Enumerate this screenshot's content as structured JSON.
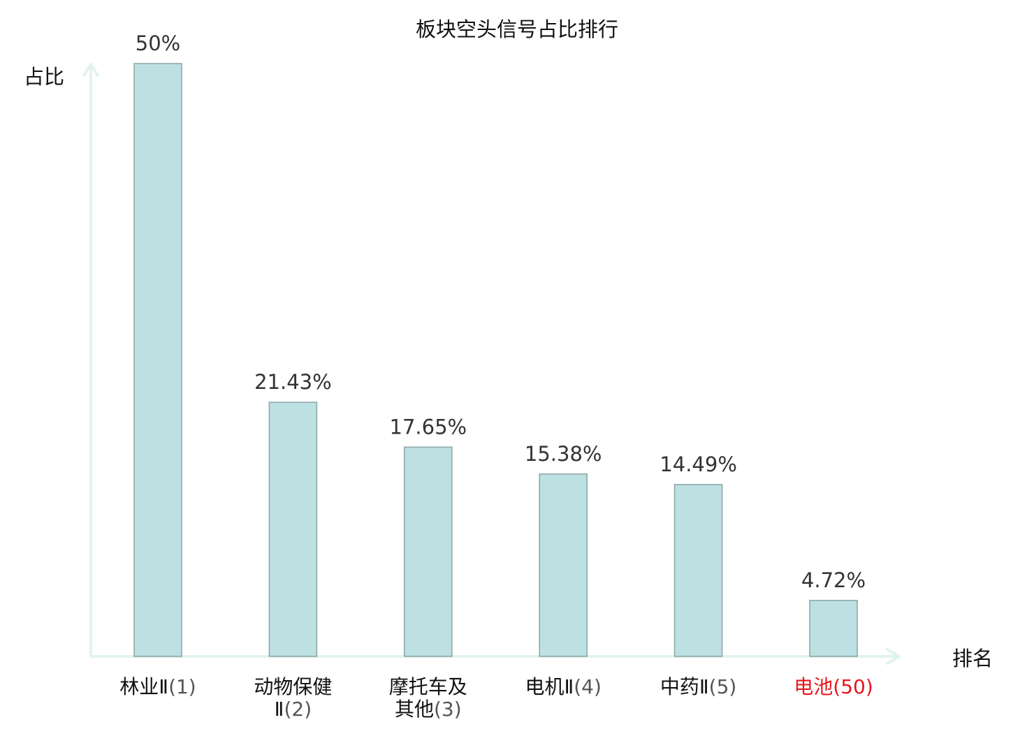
{
  "chart_data": {
    "type": "bar",
    "title": "板块空头信号占比排行",
    "xlabel": "排名",
    "ylabel": "占比",
    "ylim": [
      0,
      50
    ],
    "grid": false,
    "legend": "none",
    "categories": [
      {
        "name": "林业Ⅱ",
        "rank": "(1)",
        "highlight": false
      },
      {
        "name": "动物保健Ⅱ",
        "rank": "(2)",
        "highlight": false
      },
      {
        "name": "摩托车及其他",
        "rank": "(3)",
        "highlight": false
      },
      {
        "name": "电机Ⅱ",
        "rank": "(4)",
        "highlight": false
      },
      {
        "name": "中药Ⅱ",
        "rank": "(5)",
        "highlight": false
      },
      {
        "name": "电池",
        "rank": "(50)",
        "highlight": true
      }
    ],
    "values": [
      50,
      21.43,
      17.65,
      15.38,
      14.49,
      4.72
    ],
    "value_labels": [
      "50%",
      "21.43%",
      "17.65%",
      "15.38%",
      "14.49%",
      "4.72%"
    ],
    "colors": {
      "bar_fill": "#bde0e2",
      "bar_stroke": "#8fa9ab",
      "axis": "#e1f3f0",
      "label_text": "#111111",
      "rank_text": "#555555",
      "highlight": "#e8161c",
      "value_text": "#333333"
    }
  }
}
